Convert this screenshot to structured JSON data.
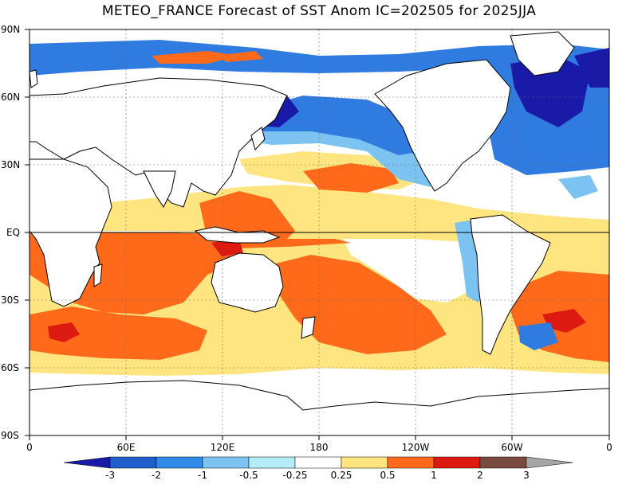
{
  "title": "METEO_FRANCE Forecast of SST Anom IC=202505 for 2025JJA",
  "lat_axis": [
    "90N",
    "60N",
    "30N",
    "EQ",
    "30S",
    "60S",
    "90S"
  ],
  "lon_axis": [
    "0",
    "60E",
    "120E",
    "180",
    "120W",
    "60W",
    "0"
  ],
  "colorbar": {
    "levels": [
      "-3",
      "-2",
      "-1",
      "-0.5",
      "-0.25",
      "0.25",
      "0.5",
      "1",
      "2",
      "3"
    ],
    "colors": [
      "#1a1aa8",
      "#1f5fcc",
      "#2f8ae8",
      "#7cc3f2",
      "#b4ecf8",
      "#ffffff",
      "#ffe57f",
      "#ff6a1a",
      "#dd1a10",
      "#7a4a40",
      "#a5a5a5"
    ]
  },
  "colors": {
    "land": "#ffffff",
    "coast": "#000000",
    "cold_strong": "#1a1aa8",
    "cold": "#2f7be0",
    "cool": "#7cc3f2",
    "neutral": "#ffffff",
    "warm_light": "#ffe57f",
    "warm": "#ff6a1a",
    "warm_strong": "#dd1a10"
  }
}
